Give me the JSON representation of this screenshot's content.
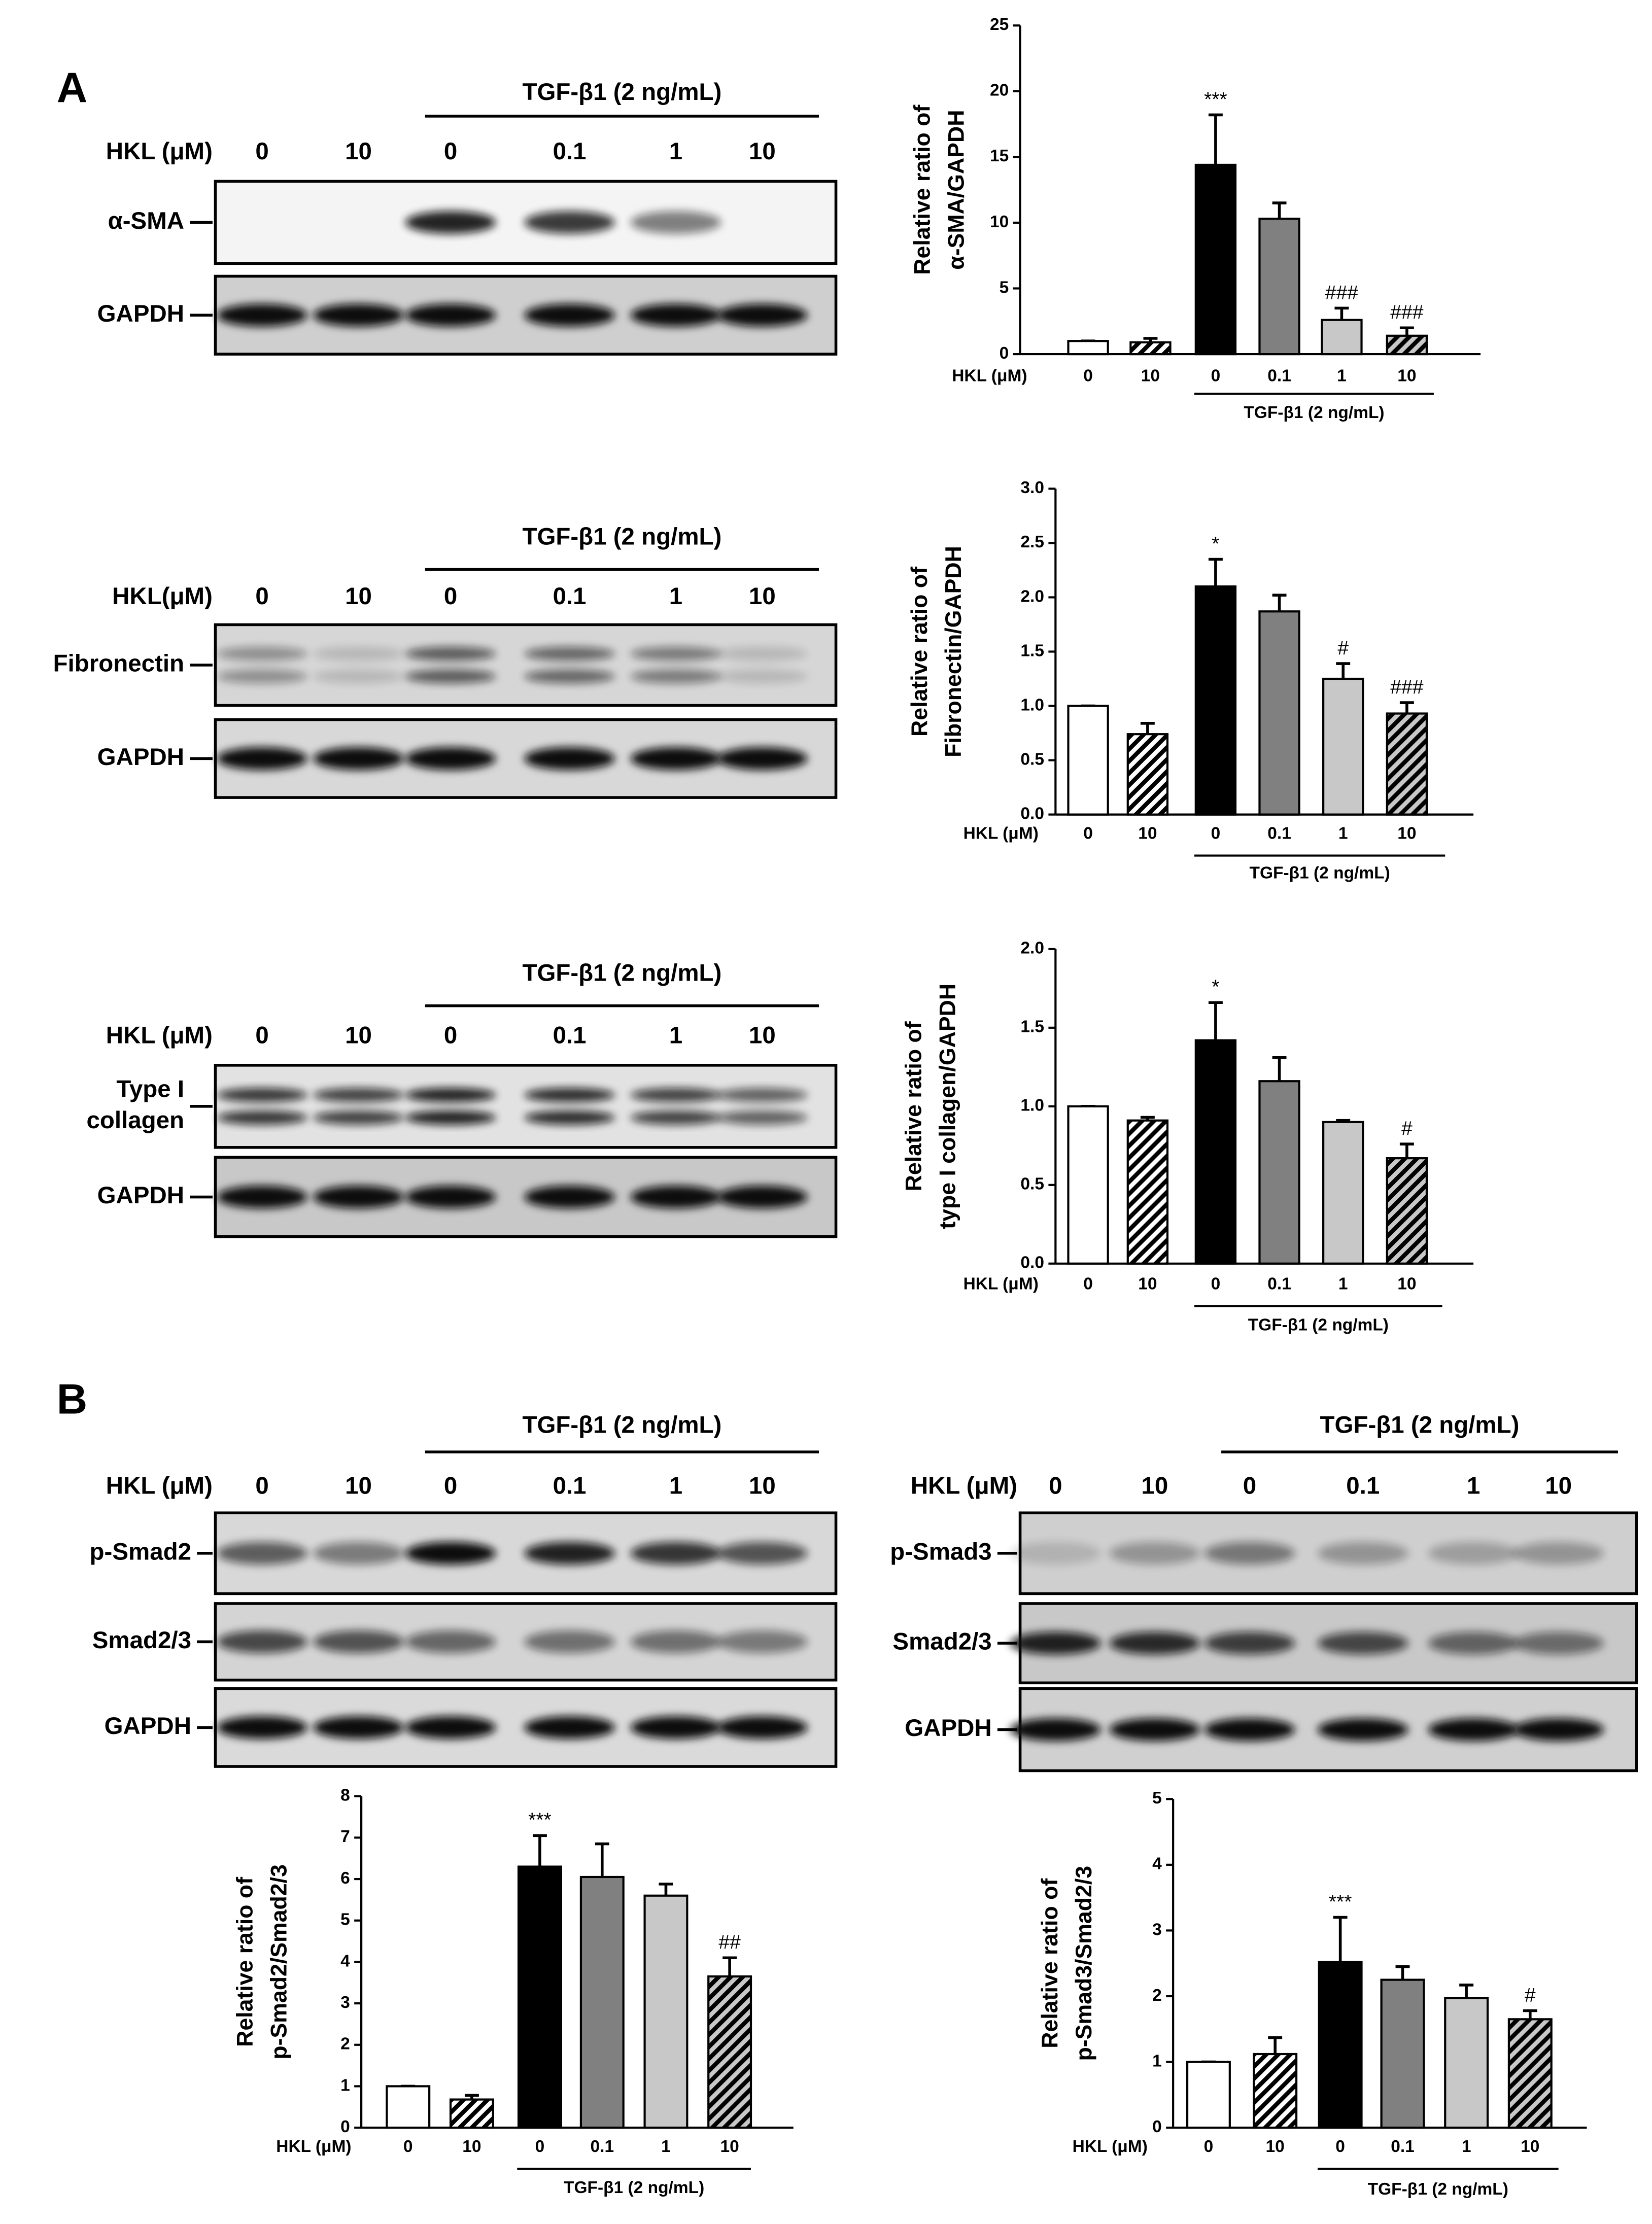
{
  "panel_labels": [
    "A",
    "B"
  ],
  "blots": [
    {
      "title": "TGF-β1 (2 ng/mL)",
      "row_label": "HKL (μM)",
      "lanes": [
        "0",
        "10",
        "0",
        "0.1",
        "1",
        "10"
      ],
      "rows": [
        [
          "α-SMA"
        ],
        [
          "GAPDH"
        ]
      ]
    },
    {
      "title": "TGF-β1 (2 ng/mL)",
      "row_label": "HKL(μM)",
      "lanes": [
        "0",
        "10",
        "0",
        "0.1",
        "1",
        "10"
      ],
      "rows": [
        [
          "Fibronectin"
        ],
        [
          "GAPDH"
        ]
      ]
    },
    {
      "title": "TGF-β1 (2 ng/mL)",
      "row_label": "HKL (μM)",
      "lanes": [
        "0",
        "10",
        "0",
        "0.1",
        "1",
        "10"
      ],
      "rows": [
        [
          "Type I",
          "collagen"
        ],
        [
          "GAPDH"
        ]
      ]
    },
    {
      "title": "TGF-β1 (2 ng/mL)",
      "row_label": "HKL (μM)",
      "lanes": [
        "0",
        "10",
        "0",
        "0.1",
        "1",
        "10"
      ],
      "rows": [
        [
          "p-Smad2"
        ],
        [
          "Smad2/3"
        ],
        [
          "GAPDH"
        ]
      ]
    },
    {
      "title": "TGF-β1 (2 ng/mL)",
      "row_label": "HKL (μM)",
      "lanes": [
        "0",
        "10",
        "0",
        "0.1",
        "1",
        "10"
      ],
      "rows": [
        [
          "p-Smad3"
        ],
        [
          "Smad2/3"
        ],
        [
          "GAPDH"
        ]
      ]
    }
  ],
  "chart_data": [
    {
      "type": "bar",
      "ylabel": [
        "Relative ratio of",
        "α-SMA/GAPDH"
      ],
      "xlabel": "HKL (μM)",
      "group_label": "TGF-β1 (2 ng/mL)",
      "categories": [
        "0",
        "10",
        "0",
        "0.1",
        "1",
        "10"
      ],
      "values": [
        1,
        0.9,
        14.4,
        10.3,
        2.6,
        1.4
      ],
      "errors": [
        0,
        0.3,
        3.8,
        1.2,
        0.9,
        0.6
      ],
      "annotations": [
        null,
        null,
        "***",
        null,
        "###",
        "###"
      ],
      "colors": [
        "#ffffff",
        "#ffffff",
        "#000000",
        "#808080",
        "#c8c8c8",
        "#c8c8c8"
      ],
      "hatch": [
        false,
        true,
        false,
        false,
        false,
        true
      ],
      "ylim": [
        0,
        25
      ],
      "yticks": [
        0,
        5,
        10,
        15,
        20,
        25
      ]
    },
    {
      "type": "bar",
      "ylabel": [
        "Relative ratio of",
        "Fibronectin/GAPDH"
      ],
      "xlabel": "HKL (μM)",
      "group_label": "TGF-β1 (2 ng/mL)",
      "categories": [
        "0",
        "10",
        "0",
        "0.1",
        "1",
        "10"
      ],
      "values": [
        1,
        0.74,
        2.1,
        1.87,
        1.25,
        0.93
      ],
      "errors": [
        0,
        0.1,
        0.25,
        0.15,
        0.14,
        0.1
      ],
      "annotations": [
        null,
        null,
        "*",
        null,
        "#",
        "###"
      ],
      "colors": [
        "#ffffff",
        "#ffffff",
        "#000000",
        "#808080",
        "#c8c8c8",
        "#c8c8c8"
      ],
      "hatch": [
        false,
        true,
        false,
        false,
        false,
        true
      ],
      "ylim": [
        0,
        3
      ],
      "yticks": [
        {
          "value": 0,
          "label": "0.0"
        },
        0.5,
        {
          "value": 1,
          "label": "1.0"
        },
        1.5,
        {
          "value": 2,
          "label": "2.0"
        },
        2.5,
        {
          "value": 3,
          "label": "3.0"
        }
      ]
    },
    {
      "type": "bar",
      "ylabel": [
        "Relative ratio of",
        "type I collagen/GAPDH"
      ],
      "xlabel": "HKL (μM)",
      "group_label": "TGF-β1 (2 ng/mL)",
      "categories": [
        "0",
        "10",
        "0",
        "0.1",
        "1",
        "10"
      ],
      "values": [
        1,
        0.91,
        1.42,
        1.16,
        0.9,
        0.67
      ],
      "errors": [
        0,
        0.02,
        0.24,
        0.15,
        0.01,
        0.09
      ],
      "annotations": [
        null,
        null,
        "*",
        null,
        null,
        "#"
      ],
      "colors": [
        "#ffffff",
        "#ffffff",
        "#000000",
        "#808080",
        "#c8c8c8",
        "#c8c8c8"
      ],
      "hatch": [
        false,
        true,
        false,
        false,
        false,
        true
      ],
      "ylim": [
        0,
        2
      ],
      "yticks": [
        {
          "value": 0,
          "label": "0.0"
        },
        0.5,
        {
          "value": 1,
          "label": "1.0"
        },
        1.5,
        {
          "value": 2,
          "label": "2.0"
        }
      ]
    },
    {
      "type": "bar",
      "ylabel": [
        "Relative ratio of",
        "p-Smad2/Smad2/3"
      ],
      "xlabel": "HKL (μM)",
      "group_label": "TGF-β1 (2 ng/mL)",
      "categories": [
        "0",
        "10",
        "0",
        "0.1",
        "1",
        "10"
      ],
      "values": [
        1,
        0.68,
        6.3,
        6.05,
        5.6,
        3.65
      ],
      "errors": [
        0,
        0.1,
        0.75,
        0.8,
        0.28,
        0.45
      ],
      "annotations": [
        null,
        null,
        "***",
        null,
        null,
        "##"
      ],
      "colors": [
        "#ffffff",
        "#ffffff",
        "#000000",
        "#808080",
        "#c8c8c8",
        "#c8c8c8"
      ],
      "hatch": [
        false,
        true,
        false,
        false,
        false,
        true
      ],
      "ylim": [
        0,
        8
      ],
      "yticks": [
        0,
        1,
        2,
        3,
        4,
        5,
        6,
        7,
        8
      ]
    },
    {
      "type": "bar",
      "ylabel": [
        "Relative ratio of",
        "p-Smad3/Smad2/3"
      ],
      "xlabel": "HKL (μM)",
      "group_label": "TGF-β1 (2 ng/mL)",
      "categories": [
        "0",
        "10",
        "0",
        "0.1",
        "1",
        "10"
      ],
      "values": [
        1,
        1.12,
        2.52,
        2.25,
        1.97,
        1.65
      ],
      "errors": [
        0,
        0.25,
        0.68,
        0.2,
        0.2,
        0.13
      ],
      "annotations": [
        null,
        null,
        "***",
        null,
        null,
        "#"
      ],
      "colors": [
        "#ffffff",
        "#ffffff",
        "#000000",
        "#808080",
        "#c8c8c8",
        "#c8c8c8"
      ],
      "hatch": [
        false,
        true,
        false,
        false,
        false,
        true
      ],
      "ylim": [
        0,
        5
      ],
      "yticks": [
        0,
        1,
        2,
        3,
        4,
        5
      ]
    }
  ]
}
